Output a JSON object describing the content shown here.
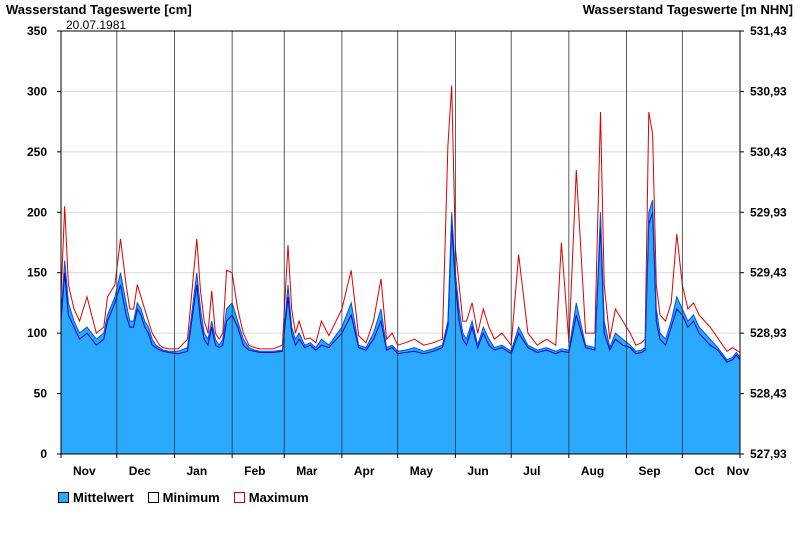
{
  "chart_data": {
    "type": "area",
    "title_left": "Wasserstand Tageswerte [cm]",
    "title_right": "Wasserstand Tageswerte [m NHN]",
    "date_annotation": "20.07.1981",
    "ylim": [
      0,
      350
    ],
    "y_ticks": [
      0,
      50,
      100,
      150,
      200,
      250,
      300,
      350
    ],
    "y2_ticks": [
      "527,93",
      "528,43",
      "528,93",
      "529,43",
      "529,93",
      "530,43",
      "530,93",
      "531,43"
    ],
    "grid": true,
    "x_start": "1980-11-01",
    "x_end": "1981-11-01",
    "months": [
      "Nov",
      "Dec",
      "Jan",
      "Feb",
      "Mar",
      "Apr",
      "May",
      "Jun",
      "Jul",
      "Aug",
      "Sep",
      "Oct",
      "Nov"
    ],
    "colors": {
      "mean": "#2aa9ff",
      "min": "#0000cc",
      "max": "#dd0000"
    },
    "legend": [
      "Mittelwert",
      "Minimum",
      "Maximum"
    ],
    "series": {
      "x": [
        "1980-11-01",
        "1980-11-03",
        "1980-11-05",
        "1980-11-08",
        "1980-11-11",
        "1980-11-15",
        "1980-11-20",
        "1980-11-24",
        "1980-11-26",
        "1980-11-30",
        "1980-12-03",
        "1980-12-06",
        "1980-12-08",
        "1980-12-10",
        "1980-12-12",
        "1980-12-14",
        "1980-12-16",
        "1980-12-18",
        "1980-12-20",
        "1980-12-22",
        "1980-12-24",
        "1980-12-26",
        "1980-12-29",
        "1981-01-03",
        "1981-01-08",
        "1981-01-13",
        "1981-01-15",
        "1981-01-17",
        "1981-01-19",
        "1981-01-21",
        "1981-01-23",
        "1981-01-25",
        "1981-01-27",
        "1981-01-29",
        "1981-02-01",
        "1981-02-04",
        "1981-02-07",
        "1981-02-10",
        "1981-02-13",
        "1981-02-16",
        "1981-02-19",
        "1981-02-23",
        "1981-02-28",
        "1981-03-03",
        "1981-03-05",
        "1981-03-07",
        "1981-03-09",
        "1981-03-12",
        "1981-03-15",
        "1981-03-18",
        "1981-03-21",
        "1981-03-25",
        "1981-04-01",
        "1981-04-06",
        "1981-04-10",
        "1981-04-14",
        "1981-04-18",
        "1981-04-22",
        "1981-04-25",
        "1981-04-28",
        "1981-05-01",
        "1981-05-05",
        "1981-05-10",
        "1981-05-15",
        "1981-05-20",
        "1981-05-25",
        "1981-05-28",
        "1981-05-30",
        "1981-06-01",
        "1981-06-03",
        "1981-06-05",
        "1981-06-07",
        "1981-06-10",
        "1981-06-13",
        "1981-06-16",
        "1981-06-19",
        "1981-06-22",
        "1981-06-26",
        "1981-07-01",
        "1981-07-05",
        "1981-07-10",
        "1981-07-15",
        "1981-07-20",
        "1981-07-25",
        "1981-07-28",
        "1981-08-01",
        "1981-08-05",
        "1981-08-10",
        "1981-08-15",
        "1981-08-18",
        "1981-08-20",
        "1981-08-23",
        "1981-08-26",
        "1981-08-30",
        "1981-09-03",
        "1981-09-06",
        "1981-09-09",
        "1981-09-11",
        "1981-09-13",
        "1981-09-15",
        "1981-09-17",
        "1981-09-19",
        "1981-09-22",
        "1981-09-25",
        "1981-09-28",
        "1981-10-01",
        "1981-10-04",
        "1981-10-07",
        "1981-10-10",
        "1981-10-13",
        "1981-10-16",
        "1981-10-20",
        "1981-10-25",
        "1981-10-28",
        "1981-10-30",
        "1981-11-01"
      ],
      "mean": [
        115,
        160,
        125,
        110,
        100,
        105,
        95,
        100,
        115,
        130,
        150,
        125,
        110,
        110,
        125,
        120,
        110,
        105,
        95,
        90,
        88,
        86,
        85,
        85,
        88,
        150,
        120,
        100,
        95,
        110,
        95,
        90,
        95,
        120,
        125,
        110,
        95,
        88,
        86,
        85,
        85,
        85,
        86,
        140,
        105,
        95,
        100,
        90,
        92,
        88,
        95,
        90,
        105,
        125,
        90,
        88,
        100,
        120,
        88,
        90,
        85,
        86,
        88,
        85,
        87,
        90,
        110,
        200,
        150,
        120,
        100,
        95,
        110,
        90,
        105,
        95,
        88,
        90,
        85,
        105,
        90,
        86,
        88,
        85,
        87,
        86,
        125,
        90,
        88,
        200,
        110,
        88,
        100,
        95,
        90,
        85,
        86,
        88,
        200,
        210,
        120,
        100,
        95,
        110,
        130,
        120,
        110,
        115,
        105,
        100,
        95,
        88,
        78,
        80,
        84,
        80
      ],
      "min": [
        110,
        150,
        115,
        105,
        95,
        100,
        90,
        95,
        110,
        125,
        140,
        115,
        105,
        105,
        120,
        115,
        105,
        100,
        90,
        88,
        86,
        85,
        84,
        83,
        85,
        140,
        110,
        95,
        90,
        105,
        90,
        88,
        90,
        110,
        115,
        105,
        90,
        86,
        85,
        84,
        84,
        84,
        85,
        130,
        100,
        90,
        95,
        88,
        90,
        86,
        90,
        88,
        100,
        115,
        88,
        86,
        95,
        110,
        86,
        88,
        83,
        84,
        85,
        83,
        85,
        88,
        105,
        190,
        140,
        110,
        95,
        90,
        105,
        88,
        100,
        90,
        86,
        88,
        83,
        100,
        88,
        84,
        86,
        83,
        85,
        84,
        115,
        88,
        86,
        190,
        100,
        86,
        95,
        90,
        88,
        83,
        84,
        86,
        190,
        200,
        110,
        95,
        90,
        105,
        120,
        115,
        105,
        110,
        100,
        95,
        90,
        86,
        76,
        78,
        82,
        78
      ],
      "max": [
        130,
        205,
        140,
        120,
        110,
        130,
        100,
        105,
        130,
        140,
        178,
        140,
        120,
        120,
        140,
        130,
        120,
        110,
        100,
        95,
        90,
        88,
        87,
        87,
        95,
        178,
        135,
        110,
        100,
        135,
        100,
        95,
        100,
        152,
        150,
        120,
        100,
        90,
        88,
        87,
        87,
        87,
        90,
        173,
        120,
        100,
        110,
        95,
        96,
        92,
        110,
        98,
        120,
        152,
        98,
        92,
        110,
        145,
        95,
        100,
        90,
        92,
        95,
        90,
        92,
        95,
        255,
        305,
        170,
        140,
        110,
        110,
        125,
        100,
        120,
        105,
        95,
        100,
        90,
        165,
        100,
        90,
        95,
        90,
        175,
        92,
        235,
        100,
        100,
        283,
        140,
        95,
        120,
        110,
        100,
        90,
        92,
        95,
        283,
        265,
        140,
        115,
        110,
        125,
        182,
        140,
        120,
        125,
        115,
        110,
        105,
        96,
        85,
        88,
        86,
        84
      ]
    }
  }
}
